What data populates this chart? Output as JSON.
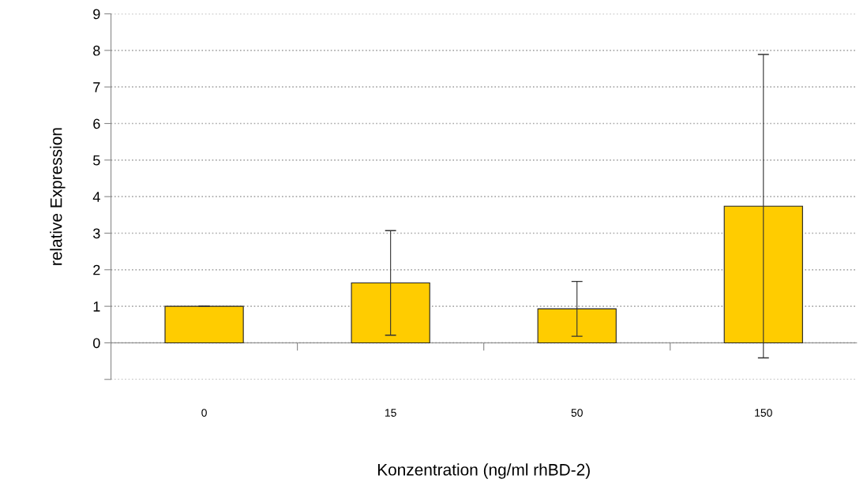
{
  "chart_data": {
    "type": "bar",
    "xlabel": "Konzentration (ng/ml rhBD-2)",
    "ylabel": "relative Expression",
    "categories": [
      "0",
      "15",
      "50",
      "150"
    ],
    "series": [
      {
        "color": "#ffcc00",
        "values": [
          1.0,
          1.64,
          0.93,
          3.74
        ],
        "errors": [
          null,
          1.43,
          0.75,
          4.15
        ]
      }
    ],
    "ylim": [
      -1,
      9
    ],
    "yticks": [
      {
        "value": -1,
        "label": null
      },
      0,
      1,
      2,
      3,
      4,
      5,
      6,
      7,
      8,
      9
    ],
    "grid": "y",
    "legend": false
  }
}
